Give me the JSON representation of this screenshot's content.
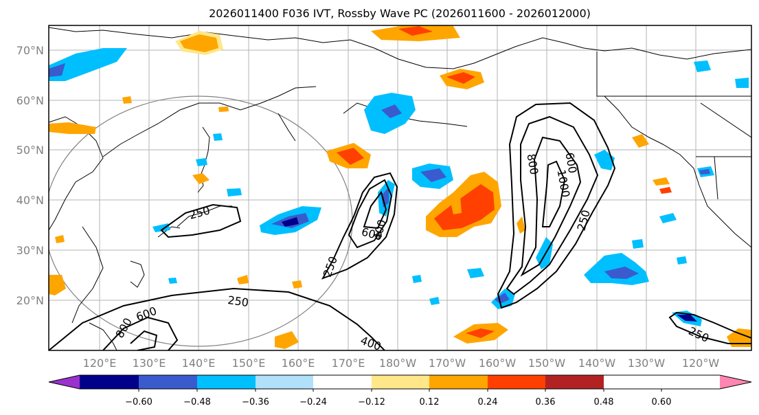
{
  "title": "2026011400 F036 IVT, Rossby Wave PC (2026011600 - 2026012000)",
  "map": {
    "lat_labels": [
      "70°N",
      "60°N",
      "50°N",
      "40°N",
      "30°N",
      "20°N"
    ],
    "lon_labels": [
      "120°E",
      "130°E",
      "140°E",
      "150°E",
      "160°E",
      "170°E",
      "180°W",
      "170°W",
      "160°W",
      "150°W",
      "140°W",
      "130°W",
      "120°W"
    ],
    "ivt_contour_labels": [
      "250",
      "600",
      "400",
      "250",
      "1000",
      "800",
      "600",
      "250",
      "250",
      "600",
      "800",
      "400",
      "250"
    ]
  },
  "colorbar": {
    "tick_labels": [
      "−0.60",
      "−0.48",
      "−0.36",
      "−0.24",
      "−0.12",
      "0.12",
      "0.24",
      "0.36",
      "0.48",
      "0.60"
    ],
    "colors": [
      "#9932cc",
      "#00008b",
      "#3a5bcd",
      "#00bfff",
      "#b0e0fa",
      "#ffffff",
      "#ffe78a",
      "#ffa500",
      "#ff4000",
      "#b22222",
      "#ff86b0"
    ]
  }
}
